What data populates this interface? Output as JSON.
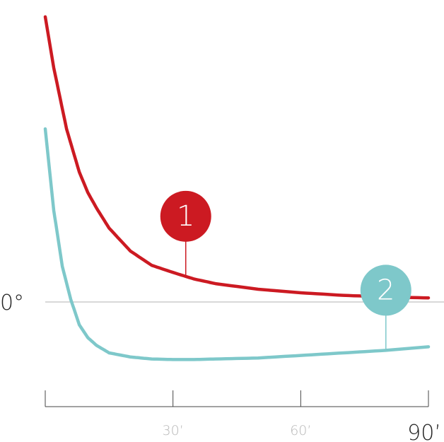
{
  "chart_data": {
    "type": "line",
    "xlabel": "",
    "ylabel": "",
    "title": "",
    "xlim": [
      0,
      90
    ],
    "ylim": [
      -5,
      6
    ],
    "x_ticks": [
      {
        "value": 0,
        "label": ""
      },
      {
        "value": 30,
        "label": "30’"
      },
      {
        "value": 60,
        "label": "60’"
      },
      {
        "value": 90,
        "label": "90’"
      }
    ],
    "y_ref_label": "0°",
    "grid": false,
    "series": [
      {
        "color": "#cc1a22",
        "marker_label": "1",
        "marker_x": 33,
        "x": [
          0,
          2,
          5,
          8,
          10,
          12,
          15,
          20,
          25,
          30,
          35,
          40,
          50,
          60,
          70,
          80,
          90
        ],
        "y": [
          5.6,
          4.6,
          3.4,
          2.55,
          2.15,
          1.85,
          1.45,
          1.0,
          0.72,
          0.58,
          0.45,
          0.36,
          0.25,
          0.18,
          0.13,
          0.1,
          0.08
        ]
      },
      {
        "color": "#7ec8ca",
        "marker_label": "2",
        "marker_x": 80,
        "x": [
          0,
          2,
          4,
          6,
          8,
          10,
          12,
          15,
          20,
          25,
          30,
          35,
          40,
          50,
          60,
          70,
          80,
          90
        ],
        "y": [
          3.4,
          1.8,
          0.7,
          0.05,
          -0.45,
          -0.7,
          -0.85,
          -1.0,
          -1.08,
          -1.12,
          -1.13,
          -1.13,
          -1.12,
          -1.1,
          -1.05,
          -1.0,
          -0.95,
          -0.88
        ]
      }
    ]
  }
}
